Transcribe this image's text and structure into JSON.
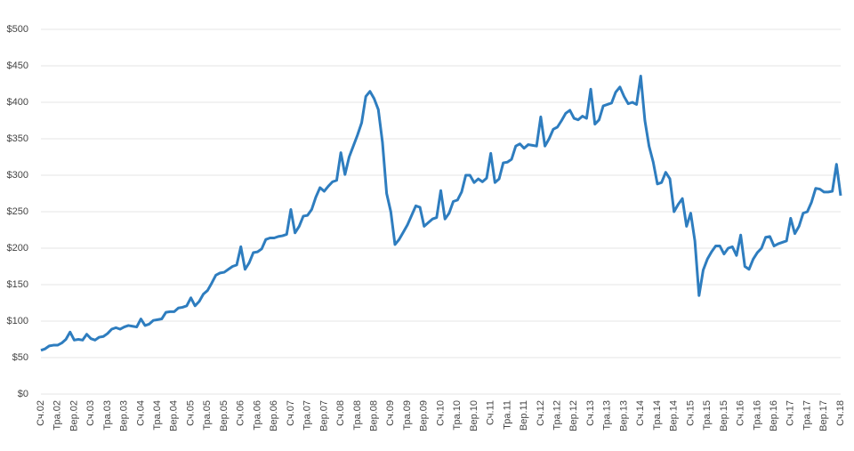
{
  "chart_data": {
    "type": "line",
    "color": "#2e7dbf",
    "categories": [
      "Сч.02",
      null,
      null,
      null,
      "Тра.02",
      null,
      null,
      null,
      "Вер.02",
      null,
      null,
      null,
      "Сч.03",
      null,
      null,
      null,
      "Тра.03",
      null,
      null,
      null,
      "Вер.03",
      null,
      null,
      null,
      "Сч.04",
      null,
      null,
      null,
      "Тра.04",
      null,
      null,
      null,
      "Вер.04",
      null,
      null,
      null,
      "Сч.05",
      null,
      null,
      null,
      "Тра.05",
      null,
      null,
      null,
      "Вер.05",
      null,
      null,
      null,
      "Сч.06",
      null,
      null,
      null,
      "Тра.06",
      null,
      null,
      null,
      "Вер.06",
      null,
      null,
      null,
      "Сч.07",
      null,
      null,
      null,
      "Тра.07",
      null,
      null,
      null,
      "Вер.07",
      null,
      null,
      null,
      "Сч.08",
      null,
      null,
      null,
      "Тра.08",
      null,
      null,
      null,
      "Вер.08",
      null,
      null,
      null,
      "Сч.09",
      null,
      null,
      null,
      "Тра.09",
      null,
      null,
      null,
      "Вер.09",
      null,
      null,
      null,
      "Сч.10",
      null,
      null,
      null,
      "Тра.10",
      null,
      null,
      null,
      "Вер.10",
      null,
      null,
      null,
      "Сч.11",
      null,
      null,
      null,
      "Тра.11",
      null,
      null,
      null,
      "Вер.11",
      null,
      null,
      null,
      "Сч.12",
      null,
      null,
      null,
      "Тра.12",
      null,
      null,
      null,
      "Вер.12",
      null,
      null,
      null,
      "Сч.13",
      null,
      null,
      null,
      "Тра.13",
      null,
      null,
      null,
      "Вер.13",
      null,
      null,
      null,
      "Сч.14",
      null,
      null,
      null,
      "Тра.14",
      null,
      null,
      null,
      "Вер.14",
      null,
      null,
      null,
      "Сч.15",
      null,
      null,
      null,
      "Тра.15",
      null,
      null,
      null,
      "Вер.15",
      null,
      null,
      null,
      "Сч.16",
      null,
      null,
      null,
      "Тра.16",
      null,
      null,
      null,
      "Вер.16",
      null,
      null,
      null,
      "Сч.17",
      null,
      null,
      null,
      "Тра.17",
      null,
      null,
      null,
      "Вер.17",
      null,
      null,
      null,
      "Сч.18"
    ],
    "values": [
      60,
      62,
      66,
      67,
      67,
      70,
      75,
      85,
      74,
      75,
      74,
      82,
      76,
      74,
      78,
      79,
      83,
      89,
      91,
      89,
      92,
      94,
      93,
      92,
      103,
      94,
      96,
      101,
      102,
      103,
      112,
      113,
      113,
      118,
      119,
      121,
      132,
      121,
      127,
      137,
      142,
      152,
      163,
      166,
      167,
      171,
      175,
      177,
      202,
      171,
      180,
      194,
      195,
      199,
      212,
      214,
      214,
      216,
      217,
      219,
      253,
      221,
      230,
      244,
      245,
      253,
      270,
      283,
      278,
      285,
      291,
      293,
      331,
      301,
      325,
      340,
      355,
      372,
      408,
      415,
      405,
      390,
      345,
      275,
      250,
      205,
      212,
      222,
      232,
      245,
      258,
      256,
      230,
      235,
      240,
      242,
      279,
      240,
      248,
      264,
      266,
      277,
      300,
      300,
      290,
      295,
      291,
      296,
      330,
      290,
      295,
      317,
      318,
      322,
      340,
      343,
      337,
      342,
      341,
      340,
      380,
      340,
      350,
      363,
      366,
      375,
      385,
      389,
      378,
      376,
      381,
      378,
      418,
      370,
      376,
      395,
      397,
      399,
      414,
      421,
      408,
      398,
      400,
      397,
      436,
      375,
      340,
      318,
      288,
      290,
      304,
      295,
      250,
      260,
      268,
      230,
      248,
      210,
      135,
      170,
      185,
      195,
      203,
      203,
      192,
      200,
      202,
      190,
      218,
      175,
      171,
      185,
      194,
      200,
      215,
      216,
      203,
      206,
      208,
      210,
      241,
      220,
      230,
      248,
      250,
      263,
      282,
      281,
      277,
      277,
      278,
      315,
      272
    ],
    "ylim": [
      0,
      500
    ],
    "yticks": [
      {
        "value": 0,
        "label": "$0"
      },
      {
        "value": 50,
        "label": "$50"
      },
      {
        "value": 100,
        "label": "$100"
      },
      {
        "value": 150,
        "label": "$150"
      },
      {
        "value": 200,
        "label": "$200"
      },
      {
        "value": 250,
        "label": "$250"
      },
      {
        "value": 300,
        "label": "$300"
      },
      {
        "value": 350,
        "label": "$350"
      },
      {
        "value": 400,
        "label": "$400"
      },
      {
        "value": 450,
        "label": "$450"
      },
      {
        "value": 500,
        "label": "$500"
      }
    ],
    "grid": true
  }
}
